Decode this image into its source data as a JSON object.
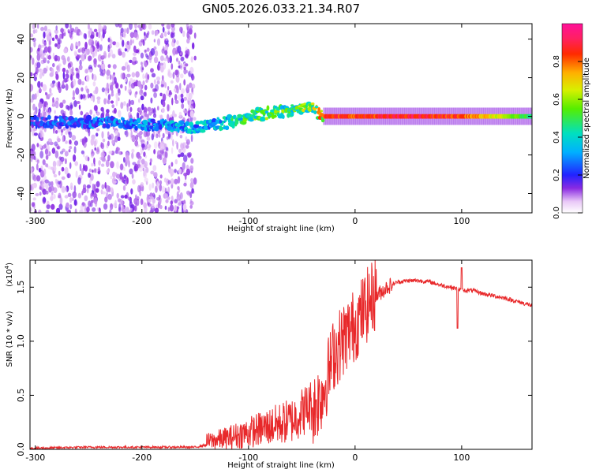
{
  "title": "GN05.2026.033.21.34.R07",
  "colors": {
    "snr_line": "#e8282a",
    "frame": "#000000"
  },
  "chart_data": [
    {
      "type": "heatmap",
      "title": "GN05.2026.033.21.34.R07",
      "xlabel": "Height of straight line (km)",
      "ylabel": "Frequency (Hz)",
      "xlim": [
        -305,
        166
      ],
      "ylim": [
        -50,
        48
      ],
      "x_ticks": [
        -300,
        -200,
        -100,
        0,
        100
      ],
      "x_tick_labels": [
        "-300",
        "-200",
        "-100",
        "0",
        "100"
      ],
      "y_ticks": [
        -40,
        -20,
        0,
        20,
        40
      ],
      "y_tick_labels": [
        "-40",
        "-20",
        "0",
        "20",
        "40"
      ],
      "colorbar": {
        "label": "Normalized spectral amplitude",
        "range": [
          0,
          1
        ],
        "ticks": [
          0,
          0.2,
          0.4,
          0.6,
          0.8
        ],
        "tick_labels": [
          "0.0",
          "0.2",
          "0.4",
          "0.6",
          "0.8"
        ]
      },
      "ridge": {
        "x": [
          -305,
          -250,
          -200,
          -150,
          -120,
          -100,
          -80,
          -60,
          -40,
          -35,
          -30,
          0,
          50,
          100,
          166
        ],
        "y": [
          -3,
          -3,
          -4,
          -6,
          -3,
          0,
          2,
          3,
          6,
          2,
          0,
          0,
          0,
          0,
          0
        ],
        "amplitude": [
          0.25,
          0.3,
          0.35,
          0.4,
          0.45,
          0.55,
          0.6,
          0.6,
          0.65,
          0.7,
          0.9,
          0.9,
          0.95,
          0.9,
          0.5
        ]
      },
      "noise_region": {
        "x_from": -305,
        "x_to": -150
      }
    },
    {
      "type": "line",
      "xlabel": "Height of straight line (km)",
      "ylabel": "SNR (10 * v/v)",
      "y_multiplier": "(x10",
      "y_multiplier_exp": "4",
      "xlim": [
        -305,
        166
      ],
      "ylim": [
        0,
        1.75
      ],
      "x_ticks": [
        -300,
        -200,
        -100,
        0,
        100
      ],
      "x_tick_labels": [
        "-300",
        "-200",
        "-100",
        "0",
        "100"
      ],
      "y_ticks": [
        0,
        0.5,
        1.0,
        1.5
      ],
      "y_tick_labels": [
        "0.0",
        "0.5",
        "1.0",
        "1.5"
      ],
      "series": [
        {
          "name": "SNR",
          "x": [
            -305,
            -250,
            -200,
            -150,
            -140,
            -120,
            -100,
            -80,
            -60,
            -40,
            -30,
            -20,
            -10,
            0,
            10,
            20,
            30,
            40,
            50,
            60,
            70,
            80,
            90,
            100,
            110,
            120,
            140,
            166
          ],
          "y": [
            0.01,
            0.02,
            0.02,
            0.02,
            0.04,
            0.06,
            0.1,
            0.14,
            0.18,
            0.32,
            0.5,
            0.85,
            1.0,
            1.12,
            1.28,
            1.42,
            1.5,
            1.55,
            1.56,
            1.56,
            1.55,
            1.52,
            1.5,
            1.47,
            1.47,
            1.44,
            1.4,
            1.33
          ]
        }
      ],
      "annotations": [
        {
          "x": 96,
          "y": 1.12,
          "label": "dip"
        },
        {
          "x": 100,
          "y": 1.68,
          "label": "spike"
        }
      ]
    }
  ]
}
